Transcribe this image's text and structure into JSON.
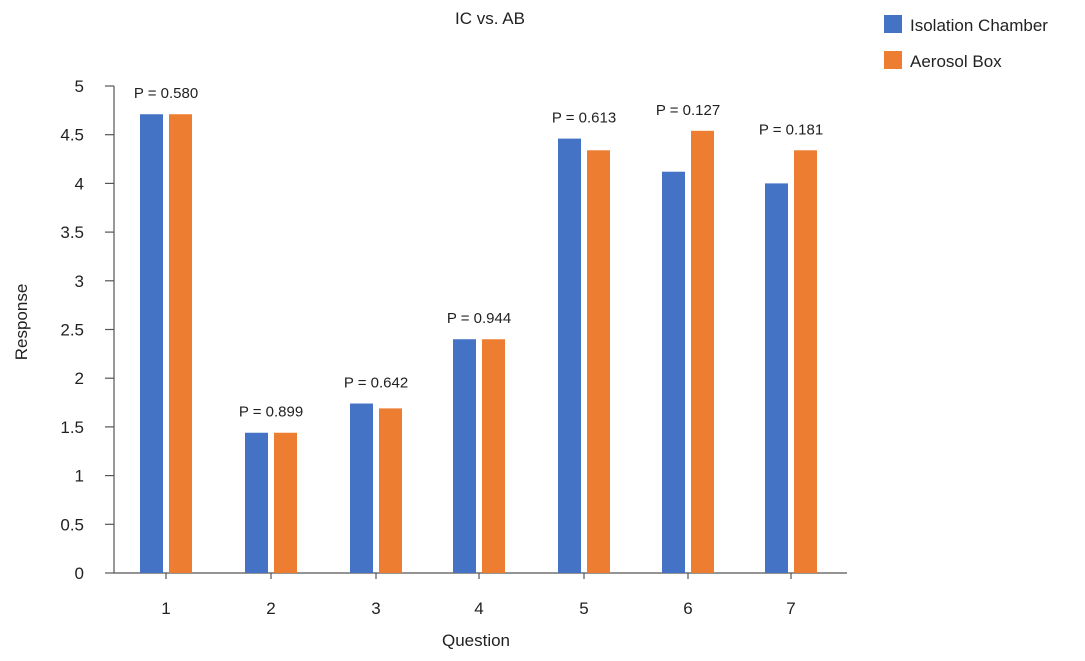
{
  "chart_data": {
    "type": "bar",
    "title": "IC vs. AB",
    "xlabel": "Question",
    "ylabel": "Response",
    "categories": [
      "1",
      "2",
      "3",
      "4",
      "5",
      "6",
      "7"
    ],
    "ylim": [
      0,
      5
    ],
    "yticks": [
      "0",
      "0.5",
      "1",
      "1.5",
      "2",
      "2.5",
      "3",
      "3.5",
      "4",
      "4.5",
      "5"
    ],
    "series": [
      {
        "name": "Isolation Chamber",
        "color": "#4472C4",
        "values": [
          4.71,
          1.44,
          1.74,
          2.4,
          4.46,
          4.12,
          4.0
        ]
      },
      {
        "name": "Aerosol Box",
        "color": "#ED7D31",
        "values": [
          4.71,
          1.44,
          1.69,
          2.4,
          4.34,
          4.54,
          4.34
        ]
      }
    ],
    "annotations": [
      "P = 0.580",
      "P = 0.899",
      "P = 0.642",
      "P = 0.944",
      "P = 0.613",
      "P = 0.127",
      "P = 0.181"
    ],
    "grid": false,
    "legend_position": "top-right"
  }
}
